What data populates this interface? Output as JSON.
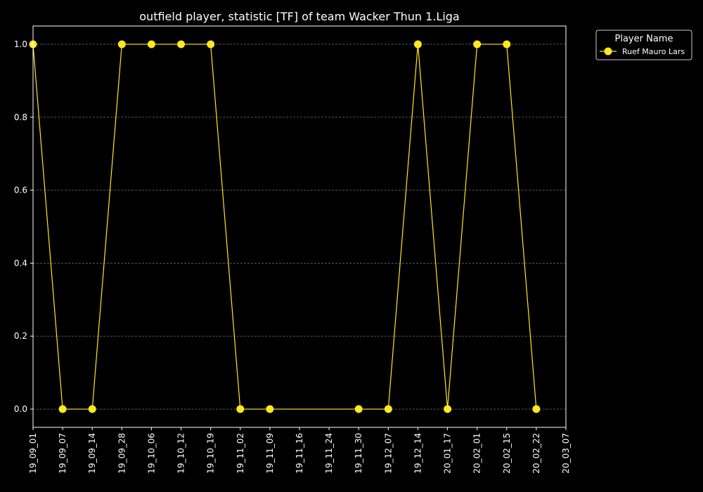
{
  "chart_data": {
    "type": "line",
    "title": "outfield player, statistic [TF] of team Wacker Thun 1.Liga",
    "xlabel": "",
    "ylabel": "",
    "x_ticks": [
      "19_09_01",
      "19_09_07",
      "19_09_14",
      "19_09_28",
      "19_10_06",
      "19_10_12",
      "19_10_19",
      "19_11_02",
      "19_11_09",
      "19_11_16",
      "19_11_24",
      "19_11_30",
      "19_12_07",
      "19_12_14",
      "20_01_17",
      "20_02_01",
      "20_02_15",
      "20_02_22",
      "20_03_07"
    ],
    "y_ticks": [
      "0.0",
      "0.2",
      "0.4",
      "0.6",
      "0.8",
      "1.0"
    ],
    "ylim": [
      -0.05,
      1.05
    ],
    "grid": true,
    "legend": {
      "title": "Player Name",
      "placement": "outside-top-right"
    },
    "series": [
      {
        "name": "Ruef Mauro Lars",
        "color": "#ffe81f",
        "points": [
          {
            "x": "19_09_01",
            "y": 1
          },
          {
            "x": "19_09_07",
            "y": 0
          },
          {
            "x": "19_09_14",
            "y": 0
          },
          {
            "x": "19_09_28",
            "y": 1
          },
          {
            "x": "19_10_06",
            "y": 1
          },
          {
            "x": "19_10_12",
            "y": 1
          },
          {
            "x": "19_10_19",
            "y": 1
          },
          {
            "x": "19_11_02",
            "y": 0
          },
          {
            "x": "19_11_09",
            "y": 0
          },
          {
            "x": "19_11_30",
            "y": 0
          },
          {
            "x": "19_12_07",
            "y": 0
          },
          {
            "x": "19_12_14",
            "y": 1
          },
          {
            "x": "20_01_17",
            "y": 0
          },
          {
            "x": "20_02_01",
            "y": 1
          },
          {
            "x": "20_02_15",
            "y": 1
          },
          {
            "x": "20_02_22",
            "y": 0
          }
        ]
      }
    ]
  }
}
